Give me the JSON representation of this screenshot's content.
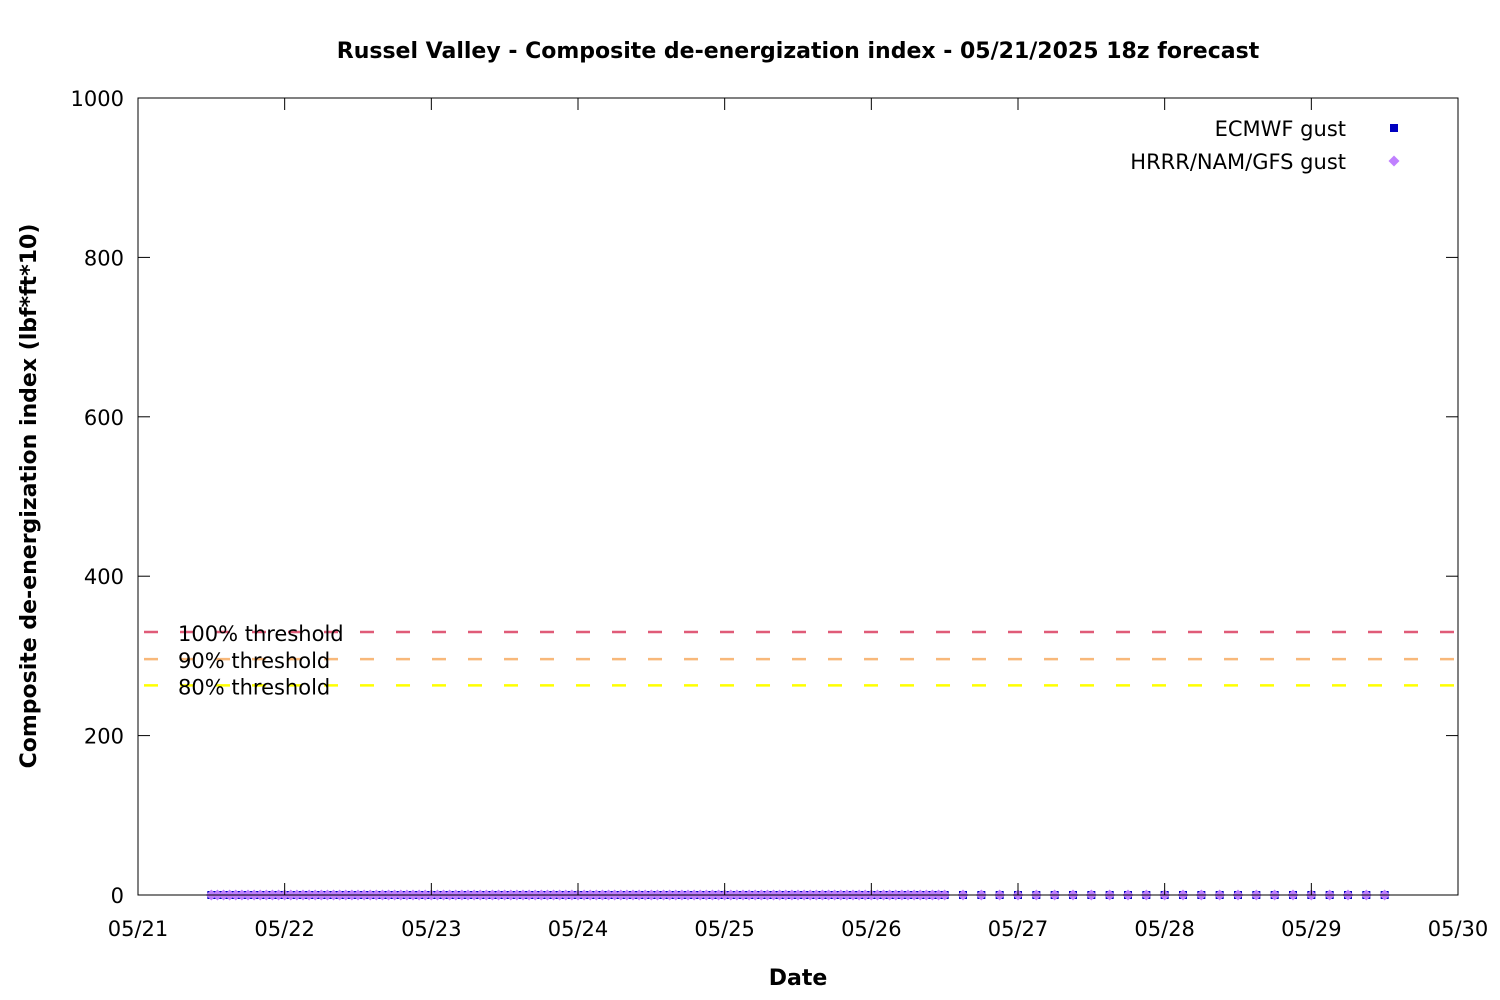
{
  "chart_data": {
    "type": "scatter",
    "title": "Russel Valley - Composite de-energization index - 05/21/2025 18z forecast",
    "xlabel": "Date",
    "ylabel": "Composite de-energization index (lbf*ft*10)",
    "xlim": [
      "05/21",
      "05/30"
    ],
    "ylim": [
      0,
      1000
    ],
    "x_ticks": [
      "05/21",
      "05/22",
      "05/23",
      "05/24",
      "05/25",
      "05/26",
      "05/27",
      "05/28",
      "05/29",
      "05/30"
    ],
    "y_ticks": [
      0,
      200,
      400,
      600,
      800,
      1000
    ],
    "grid": false,
    "legend_position": "top-right",
    "series": [
      {
        "name": "ECMWF gust",
        "marker": "square",
        "color": "#0000c0",
        "x_start": "05/21 12z",
        "x_end": "05/29 12z",
        "hourly_until": "05/26 12z",
        "interval_after_hours": 3,
        "value": 0
      },
      {
        "name": "HRRR/NAM/GFS gust",
        "marker": "diamond",
        "color": "#c080ff",
        "x_start": "05/21 12z",
        "x_end": "05/29 12z",
        "hourly_until": "05/26 12z",
        "interval_after_hours": 3,
        "value": 0
      }
    ],
    "thresholds": [
      {
        "label": "100% threshold",
        "value": 330,
        "color": "#e05b78"
      },
      {
        "label": "90% threshold",
        "value": 296,
        "color": "#f8b87a"
      },
      {
        "label": "80% threshold",
        "value": 263,
        "color": "#ffff00"
      }
    ]
  }
}
